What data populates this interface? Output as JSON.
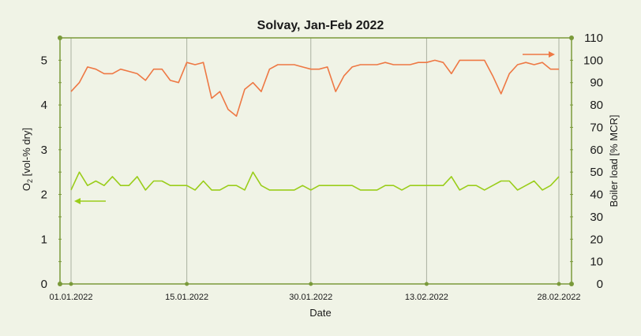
{
  "colors": {
    "background": "#f0f3e6",
    "axis": "#7a9a3a",
    "grid": "#aab0a0",
    "o2_series": "#9acd1a",
    "load_series": "#ee7844"
  },
  "chart_data": {
    "type": "line",
    "title": "Solvay, Jan-Feb 2022",
    "xlabel": "Date",
    "ylabel_left": {
      "main": "O",
      "sub": "2",
      "rest": " [vol-% dry]"
    },
    "ylabel_right": "Boiler load [% MCR]",
    "x_tick_labels": [
      "01.01.2022",
      "15.01.2022",
      "30.01.2022",
      "13.02.2022",
      "28.02.2022"
    ],
    "x_gridline_days": [
      14,
      29,
      43
    ],
    "y_left": {
      "min": 0,
      "max": 5.5,
      "ticks": [
        "0",
        "1",
        "2",
        "3",
        "4",
        "5"
      ]
    },
    "y_right": {
      "min": 0,
      "max": 110,
      "ticks": [
        "0",
        "10",
        "20",
        "30",
        "40",
        "50",
        "60",
        "70",
        "80",
        "90",
        "100",
        "110"
      ]
    },
    "grid": "vertical-only",
    "series": [
      {
        "axis": "left",
        "arrow": "left",
        "values": [
          2.1,
          2.5,
          2.2,
          2.3,
          2.2,
          2.4,
          2.2,
          2.2,
          2.4,
          2.1,
          2.3,
          2.3,
          2.2,
          2.2,
          2.2,
          2.1,
          2.3,
          2.1,
          2.1,
          2.2,
          2.2,
          2.1,
          2.5,
          2.2,
          2.1,
          2.1,
          2.1,
          2.1,
          2.2,
          2.1,
          2.2,
          2.2,
          2.2,
          2.2,
          2.2,
          2.1,
          2.1,
          2.1,
          2.2,
          2.2,
          2.1,
          2.2,
          2.2,
          2.2,
          2.2,
          2.2,
          2.4,
          2.1,
          2.2,
          2.2,
          2.1,
          2.2,
          2.3,
          2.3,
          2.1,
          2.2,
          2.3,
          2.1,
          2.2,
          2.4
        ]
      },
      {
        "axis": "right",
        "arrow": "right",
        "values": [
          86,
          90,
          97,
          96,
          94,
          94,
          96,
          95,
          94,
          91,
          96,
          96,
          91,
          90,
          99,
          98,
          99,
          83,
          86,
          78,
          75,
          87,
          90,
          86,
          96,
          98,
          98,
          98,
          97,
          96,
          96,
          97,
          86,
          93,
          97,
          98,
          98,
          98,
          99,
          98,
          98,
          98,
          99,
          99,
          100,
          99,
          94,
          100,
          100,
          100,
          100,
          93,
          85,
          94,
          98,
          99,
          98,
          99,
          96,
          96
        ]
      }
    ]
  }
}
